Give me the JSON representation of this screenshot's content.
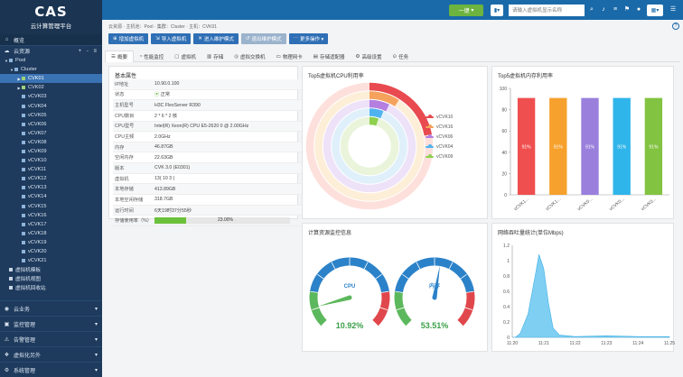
{
  "app": {
    "title_mark": "CAS",
    "subtitle": "云计算管理平台"
  },
  "nav": {
    "overview": "概览",
    "resources": "云资源",
    "resources_tools": "+ - ≡",
    "pool": "Pool",
    "cluster": "Cluster",
    "hosts": [
      "CVK01",
      "CVK02",
      "vCVK03",
      "vCVK04",
      "vCVK05",
      "vCVK06",
      "vCVK07",
      "vCVK08",
      "vCVK09",
      "vCVK10",
      "vCVK11",
      "vCVK12",
      "vCVK13",
      "vCVK14",
      "vCVK15",
      "vCVK16",
      "vCVK17",
      "vCVK18",
      "vCVK19",
      "vCVK20",
      "vCVK21"
    ],
    "sub_items": [
      "虚拟机模板",
      "虚拟机视图",
      "虚拟机回收站"
    ],
    "bottom": [
      "云业务",
      "监控管理",
      "告警管理",
      "虚拟化另外",
      "系统管理"
    ]
  },
  "topbar": {
    "onekey": "一键",
    "search_placeholder": "请输入虚拟机显示名称"
  },
  "breadcrumb": "云资源  ·  主机池：Pool  ·  集群：Cluster  ·  主机：CVK01",
  "actions": [
    "增加虚拟机",
    "导入虚拟机",
    "进入维护模式",
    "退出维护模式",
    "更多操作"
  ],
  "tabs": [
    "概要",
    "性能监控",
    "虚拟机",
    "存储",
    "虚拟交换机",
    "物理网卡",
    "存储适配器",
    "高级设置",
    "任务"
  ],
  "basic": {
    "title": "基本属性",
    "rows": [
      {
        "k": "IP地址",
        "v": "10.90.0.100"
      },
      {
        "k": "状态",
        "v": "正常"
      },
      {
        "k": "主机型号",
        "v": "H3C FlexServer R390"
      },
      {
        "k": "CPU数目",
        "v": "2 * 6 * 2 核"
      },
      {
        "k": "CPU型号",
        "v": "Intel(R) Xeon(R) CPU E5-2620 0 @ 2.00GHz"
      },
      {
        "k": "CPU主频",
        "v": "2.0GHz"
      },
      {
        "k": "内存",
        "v": "46.87GB"
      },
      {
        "k": "空闲内存",
        "v": "22.63GB"
      },
      {
        "k": "版本",
        "v": "CVK 3.0 (E0301)"
      },
      {
        "k": "虚拟机",
        "v": "13( 10  3 )"
      },
      {
        "k": "本地存储",
        "v": "413.89GB"
      },
      {
        "k": "本地空闲存储",
        "v": "318.7GB"
      },
      {
        "k": "运行时间",
        "v": "6天19时37分55秒"
      },
      {
        "k": "存储使用率（%）",
        "v": "23.00%"
      }
    ],
    "storage_usage": 23.0
  },
  "cpu_panel": {
    "title": "Top5虚拟机CPU利用率",
    "legend": [
      "vCVK10",
      "vCVK16",
      "vCVK06",
      "vCVK04",
      "vCVK09"
    ],
    "colors": [
      "#e84a4f",
      "#f5a25d",
      "#b57fe0",
      "#4fb3f0",
      "#8fd04f"
    ],
    "values": [
      0.22,
      0.09,
      0.07,
      0.06,
      0.05
    ]
  },
  "mem_panel": {
    "title": "Top5虚拟机内存利用率",
    "chart_data": {
      "type": "bar",
      "categories": [
        "vCVK1...",
        "vCVK1...",
        "vCVK0...",
        "vCVK0...",
        "vCVK0..."
      ],
      "values": [
        91,
        91,
        91,
        91,
        91
      ],
      "labels": [
        "91%",
        "91%",
        "91%",
        "91%",
        "91%"
      ],
      "colors": [
        "#f04f4f",
        "#f6a12d",
        "#9a7fdc",
        "#2fb5ea",
        "#82c341"
      ],
      "yticks": [
        "0",
        "20",
        "40",
        "60",
        "80",
        "100"
      ],
      "ylim": [
        0,
        100
      ]
    }
  },
  "gauge_panel": {
    "title": "计算资源监控信息",
    "cpu": {
      "label": "CPU",
      "value": 10.92,
      "text": "10.92%"
    },
    "mem": {
      "label": "内存",
      "value": 53.51,
      "text": "53.51%"
    }
  },
  "net_panel": {
    "title": "网络吞吐量统计(单位Mbps)",
    "chart_data": {
      "type": "area",
      "x": [
        "11:20",
        "11:21",
        "11:22",
        "11:23",
        "11:24",
        "11:25"
      ],
      "yticks": [
        "0",
        "0.2",
        "0.4",
        "0.6",
        "0.8",
        "1",
        "1.2"
      ],
      "ylim": [
        0,
        1.2
      ],
      "points": [
        [
          0,
          0
        ],
        [
          0.1,
          0
        ],
        [
          0.25,
          0.05
        ],
        [
          0.5,
          0.3
        ],
        [
          0.75,
          0.85
        ],
        [
          0.85,
          1.08
        ],
        [
          1.0,
          0.9
        ],
        [
          1.15,
          0.45
        ],
        [
          1.3,
          0.12
        ],
        [
          1.5,
          0.03
        ],
        [
          2,
          0.01
        ],
        [
          3,
          0.02
        ],
        [
          4,
          0.01
        ],
        [
          5,
          0.01
        ]
      ]
    }
  }
}
